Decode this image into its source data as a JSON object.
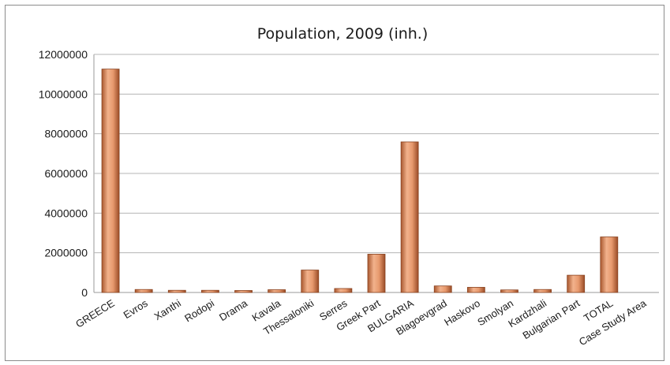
{
  "chart_data": {
    "type": "bar",
    "title": "Population, 2009 (inh.)",
    "xlabel": "",
    "ylabel": "",
    "ylim": [
      0,
      12000000
    ],
    "yticks": [
      "0",
      "2000000",
      "4000000",
      "6000000",
      "8000000",
      "10000000",
      "12000000"
    ],
    "grid": true,
    "legend": "none",
    "bar_color": "#d98b5f",
    "categories": [
      "GREECE",
      "Evros",
      "Xanthi",
      "Rodopi",
      "Drama",
      "Kavala",
      "Thessaloniki",
      "Serres",
      "Greek Part",
      "BULGARIA",
      "Blagoevgrad",
      "Haskovo",
      "Smolyan",
      "Kardzhali",
      "Bulgarian Part",
      "TOTAL",
      "Case Study Area"
    ],
    "values": [
      11260000,
      150000,
      110000,
      110000,
      100000,
      140000,
      1130000,
      200000,
      1930000,
      7590000,
      330000,
      260000,
      130000,
      150000,
      870000,
      2800000,
      0
    ]
  }
}
